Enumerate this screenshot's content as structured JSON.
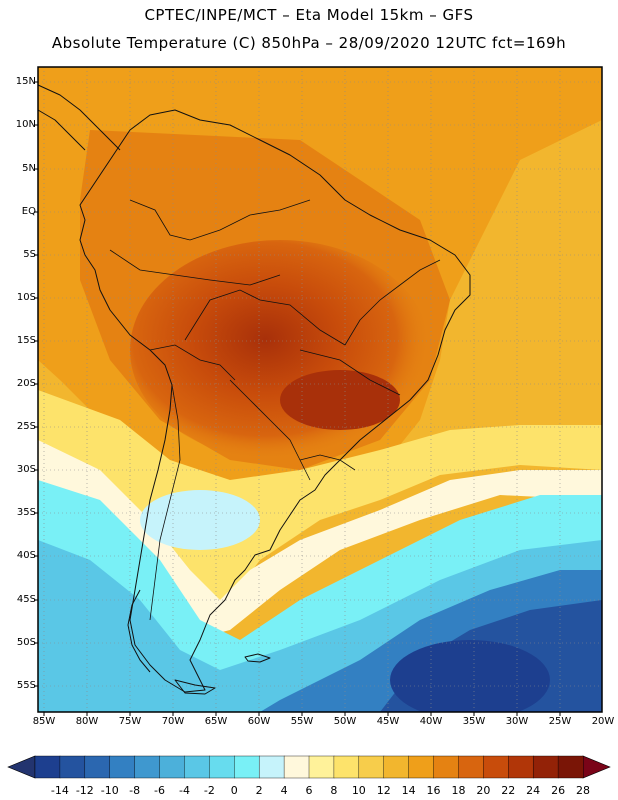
{
  "title": {
    "line1": "CPTEC/INPE/MCT –  Eta Model 15km – GFS",
    "line2": "Absolute Temperature (C) 850hPa – 28/09/2020 12UTC fct=169h"
  },
  "map": {
    "lat_labels": [
      "15N",
      "10N",
      "5N",
      "EQ",
      "5S",
      "10S",
      "15S",
      "20S",
      "25S",
      "30S",
      "35S",
      "40S",
      "45S",
      "50S",
      "55S"
    ],
    "lon_labels": [
      "85W",
      "80W",
      "75W",
      "70W",
      "65W",
      "60W",
      "55W",
      "50W",
      "45W",
      "40W",
      "35W",
      "30W",
      "25W",
      "20W"
    ]
  },
  "colorbar": {
    "labels": [
      "-14",
      "-12",
      "-10",
      "-8",
      "-6",
      "-4",
      "-2",
      "0",
      "2",
      "4",
      "6",
      "8",
      "10",
      "12",
      "14",
      "16",
      "18",
      "20",
      "22",
      "24",
      "26",
      "28"
    ],
    "colors": [
      "#1d3f8f",
      "#24539f",
      "#2b67b0",
      "#3380c2",
      "#3f98cf",
      "#4cb0da",
      "#5ac7e6",
      "#67dcee",
      "#79f0f6",
      "#c6f3fb",
      "#fff8dc",
      "#fff29a",
      "#fde36b",
      "#f7cd4b",
      "#f2b62e",
      "#ef9f1a",
      "#e58212",
      "#d8650f",
      "#c84c0b",
      "#b13608",
      "#932207",
      "#7a1506"
    ],
    "under_color": "#23346f",
    "over_color": "#7a0418"
  }
}
